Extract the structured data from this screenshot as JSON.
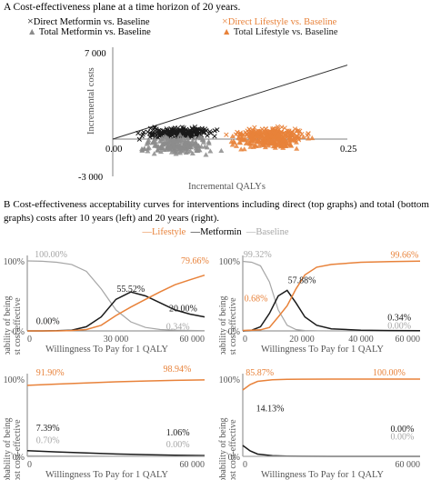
{
  "colors": {
    "metformin": "#1a1a1a",
    "lifestyle": "#e8823a",
    "baseline": "#a6a6a6",
    "grey_points": "#8c8c8c",
    "axis": "#808080"
  },
  "figure_a": {
    "caption": "A  Cost-effectiveness plane at a time horizon of 20 years.",
    "legend": {
      "direct_metformin": "Direct Metformin vs. Baseline",
      "direct_lifestyle": "Direct Lifestyle vs. Baseline",
      "total_metformin": "Total Metformin vs. Baseline",
      "total_lifestyle": "Total Lifestyle vs. Baseline"
    }
  },
  "figure_b": {
    "caption": "B  Cost-effectiveness acceptability curves for interventions including direct (top graphs) and total (bottom graphs) costs after 10 years (left) and 20 years (right).",
    "legend": {
      "lifestyle": "Lifestyle",
      "metformin": "Metformin",
      "baseline": "Baseline"
    }
  },
  "chart_data": [
    {
      "type": "scatter",
      "id": "ce-plane",
      "xlabel": "Incremental QALYs",
      "ylabel": "Incremental costs",
      "xlim": [
        -0.25,
        0.25
      ],
      "ylim": [
        -3000,
        7000
      ],
      "x_ticks": [
        "0.00",
        "0.25"
      ],
      "y_ticks": [
        "7 000",
        "-3 000"
      ],
      "threshold_line": {
        "x": [
          0,
          0.25
        ],
        "y": [
          0,
          6000
        ]
      },
      "series": [
        {
          "name": "Direct Metformin vs. Baseline",
          "marker": "x",
          "x_range": [
            0.02,
            0.12
          ],
          "y_range": [
            -100,
            1100
          ]
        },
        {
          "name": "Direct Lifestyle vs. Baseline",
          "marker": "x",
          "x_range": [
            0.11,
            0.22
          ],
          "y_range": [
            -300,
            1100
          ]
        },
        {
          "name": "Total Metformin vs. Baseline",
          "marker": "triangle",
          "x_range": [
            0.02,
            0.12
          ],
          "y_range": [
            -1500,
            500
          ]
        },
        {
          "name": "Total Lifestyle vs. Baseline",
          "marker": "triangle",
          "x_range": [
            0.11,
            0.22
          ],
          "y_range": [
            -1100,
            900
          ]
        }
      ]
    },
    {
      "type": "line",
      "id": "ceac-direct-10y",
      "xlabel": "Willingness To Pay for 1 QALY",
      "ylabel": "Probability of being most cost-effective",
      "xlim": [
        0,
        60000
      ],
      "ylim": [
        0,
        100
      ],
      "x_ticks": [
        "0",
        "30 000",
        "60 000"
      ],
      "y_ticks": [
        "100%",
        "0%"
      ],
      "x": [
        0,
        5000,
        10000,
        15000,
        20000,
        25000,
        30000,
        35000,
        40000,
        45000,
        50000,
        55000,
        60000
      ],
      "series": [
        {
          "name": "Baseline",
          "values": [
            100,
            99.5,
            98,
            95,
            85,
            60,
            30,
            13,
            5,
            2,
            1,
            0.6,
            0.34
          ]
        },
        {
          "name": "Metformin",
          "values": [
            0,
            0,
            0.3,
            1,
            6,
            20,
            45,
            55.52,
            50,
            40,
            30,
            24,
            20
          ]
        },
        {
          "name": "Lifestyle",
          "values": [
            0,
            0,
            0,
            0.5,
            2,
            8,
            22,
            34,
            45,
            56,
            66,
            73,
            79.66
          ]
        }
      ],
      "labels": {
        "baseline_start": "100.00%",
        "lifestyle_end": "79.66%",
        "metformin_peak": "55.52%",
        "metformin_end": "20.00%",
        "start": "0.00%",
        "baseline_end": "0.34%"
      }
    },
    {
      "type": "line",
      "id": "ceac-direct-20y",
      "xlabel": "Willingness To Pay for 1 QALY",
      "ylabel": "Probability of being most cost-effective",
      "xlim": [
        0,
        60000
      ],
      "ylim": [
        0,
        100
      ],
      "x_ticks": [
        "0",
        "20 000",
        "40 000",
        "60 000"
      ],
      "y_ticks": [
        "100%",
        "0%"
      ],
      "x": [
        0,
        3000,
        6000,
        9000,
        12000,
        15000,
        18000,
        21000,
        25000,
        30000,
        40000,
        50000,
        60000
      ],
      "series": [
        {
          "name": "Baseline",
          "values": [
            99.32,
            98,
            93,
            70,
            30,
            8,
            2,
            0.5,
            0.1,
            0,
            0,
            0,
            0
          ]
        },
        {
          "name": "Metformin",
          "values": [
            0,
            1,
            6,
            25,
            50,
            57.88,
            40,
            20,
            8,
            3,
            1,
            0.5,
            0.34
          ]
        },
        {
          "name": "Lifestyle",
          "values": [
            0.68,
            1,
            1.5,
            5,
            20,
            36,
            60,
            80,
            91,
            95,
            98,
            99,
            99.66
          ]
        }
      ],
      "labels": {
        "baseline_start": "99.32%",
        "lifestyle_end": "99.66%",
        "metformin_peak": "57.88%",
        "lifestyle_start": "0.68%",
        "metformin_end": "0.34%",
        "baseline_end": "0.00%"
      }
    },
    {
      "type": "line",
      "id": "ceac-total-10y",
      "xlabel": "Willingness To Pay for 1 QALY",
      "ylabel": "Probability of being most cost-effective",
      "xlim": [
        0,
        60000
      ],
      "ylim": [
        0,
        100
      ],
      "x_ticks": [
        "0",
        "60 000"
      ],
      "y_ticks": [
        "100%",
        "0%"
      ],
      "x": [
        0,
        10000,
        20000,
        30000,
        40000,
        50000,
        60000
      ],
      "series": [
        {
          "name": "Lifestyle",
          "values": [
            91.9,
            93.5,
            95,
            96.5,
            97.5,
            98.3,
            98.94
          ]
        },
        {
          "name": "Metformin",
          "values": [
            7.39,
            5.8,
            4.4,
            3.1,
            2.2,
            1.5,
            1.06
          ]
        },
        {
          "name": "Baseline",
          "values": [
            0.7,
            0.5,
            0.3,
            0.15,
            0.05,
            0.01,
            0
          ]
        }
      ],
      "labels": {
        "lifestyle_start": "91.90%",
        "lifestyle_end": "98.94%",
        "metformin_start": "7.39%",
        "metformin_end": "1.06%",
        "baseline_start": "0.70%",
        "baseline_end": "0.00%"
      }
    },
    {
      "type": "line",
      "id": "ceac-total-20y",
      "xlabel": "Willingness To Pay for 1 QALY",
      "ylabel": "Probability of being most cost-effective",
      "xlim": [
        0,
        60000
      ],
      "ylim": [
        0,
        100
      ],
      "x_ticks": [
        "0",
        "60 000"
      ],
      "y_ticks": [
        "100%",
        "0%"
      ],
      "x": [
        0,
        2500,
        5000,
        10000,
        15000,
        20000,
        30000,
        40000,
        50000,
        60000
      ],
      "series": [
        {
          "name": "Lifestyle",
          "values": [
            85.87,
            93,
            97,
            99,
            99.6,
            99.9,
            100,
            100,
            100,
            100
          ]
        },
        {
          "name": "Metformin",
          "values": [
            14.13,
            7,
            3,
            1,
            0.4,
            0.1,
            0,
            0,
            0,
            0
          ]
        },
        {
          "name": "Baseline",
          "values": [
            0,
            0,
            0,
            0,
            0,
            0,
            0,
            0,
            0,
            0
          ]
        }
      ],
      "labels": {
        "lifestyle_start": "85.87%",
        "lifestyle_end": "100.00%",
        "metformin_start": "14.13%",
        "metformin_end": "0.00%",
        "baseline_end": "0.00%"
      }
    }
  ]
}
